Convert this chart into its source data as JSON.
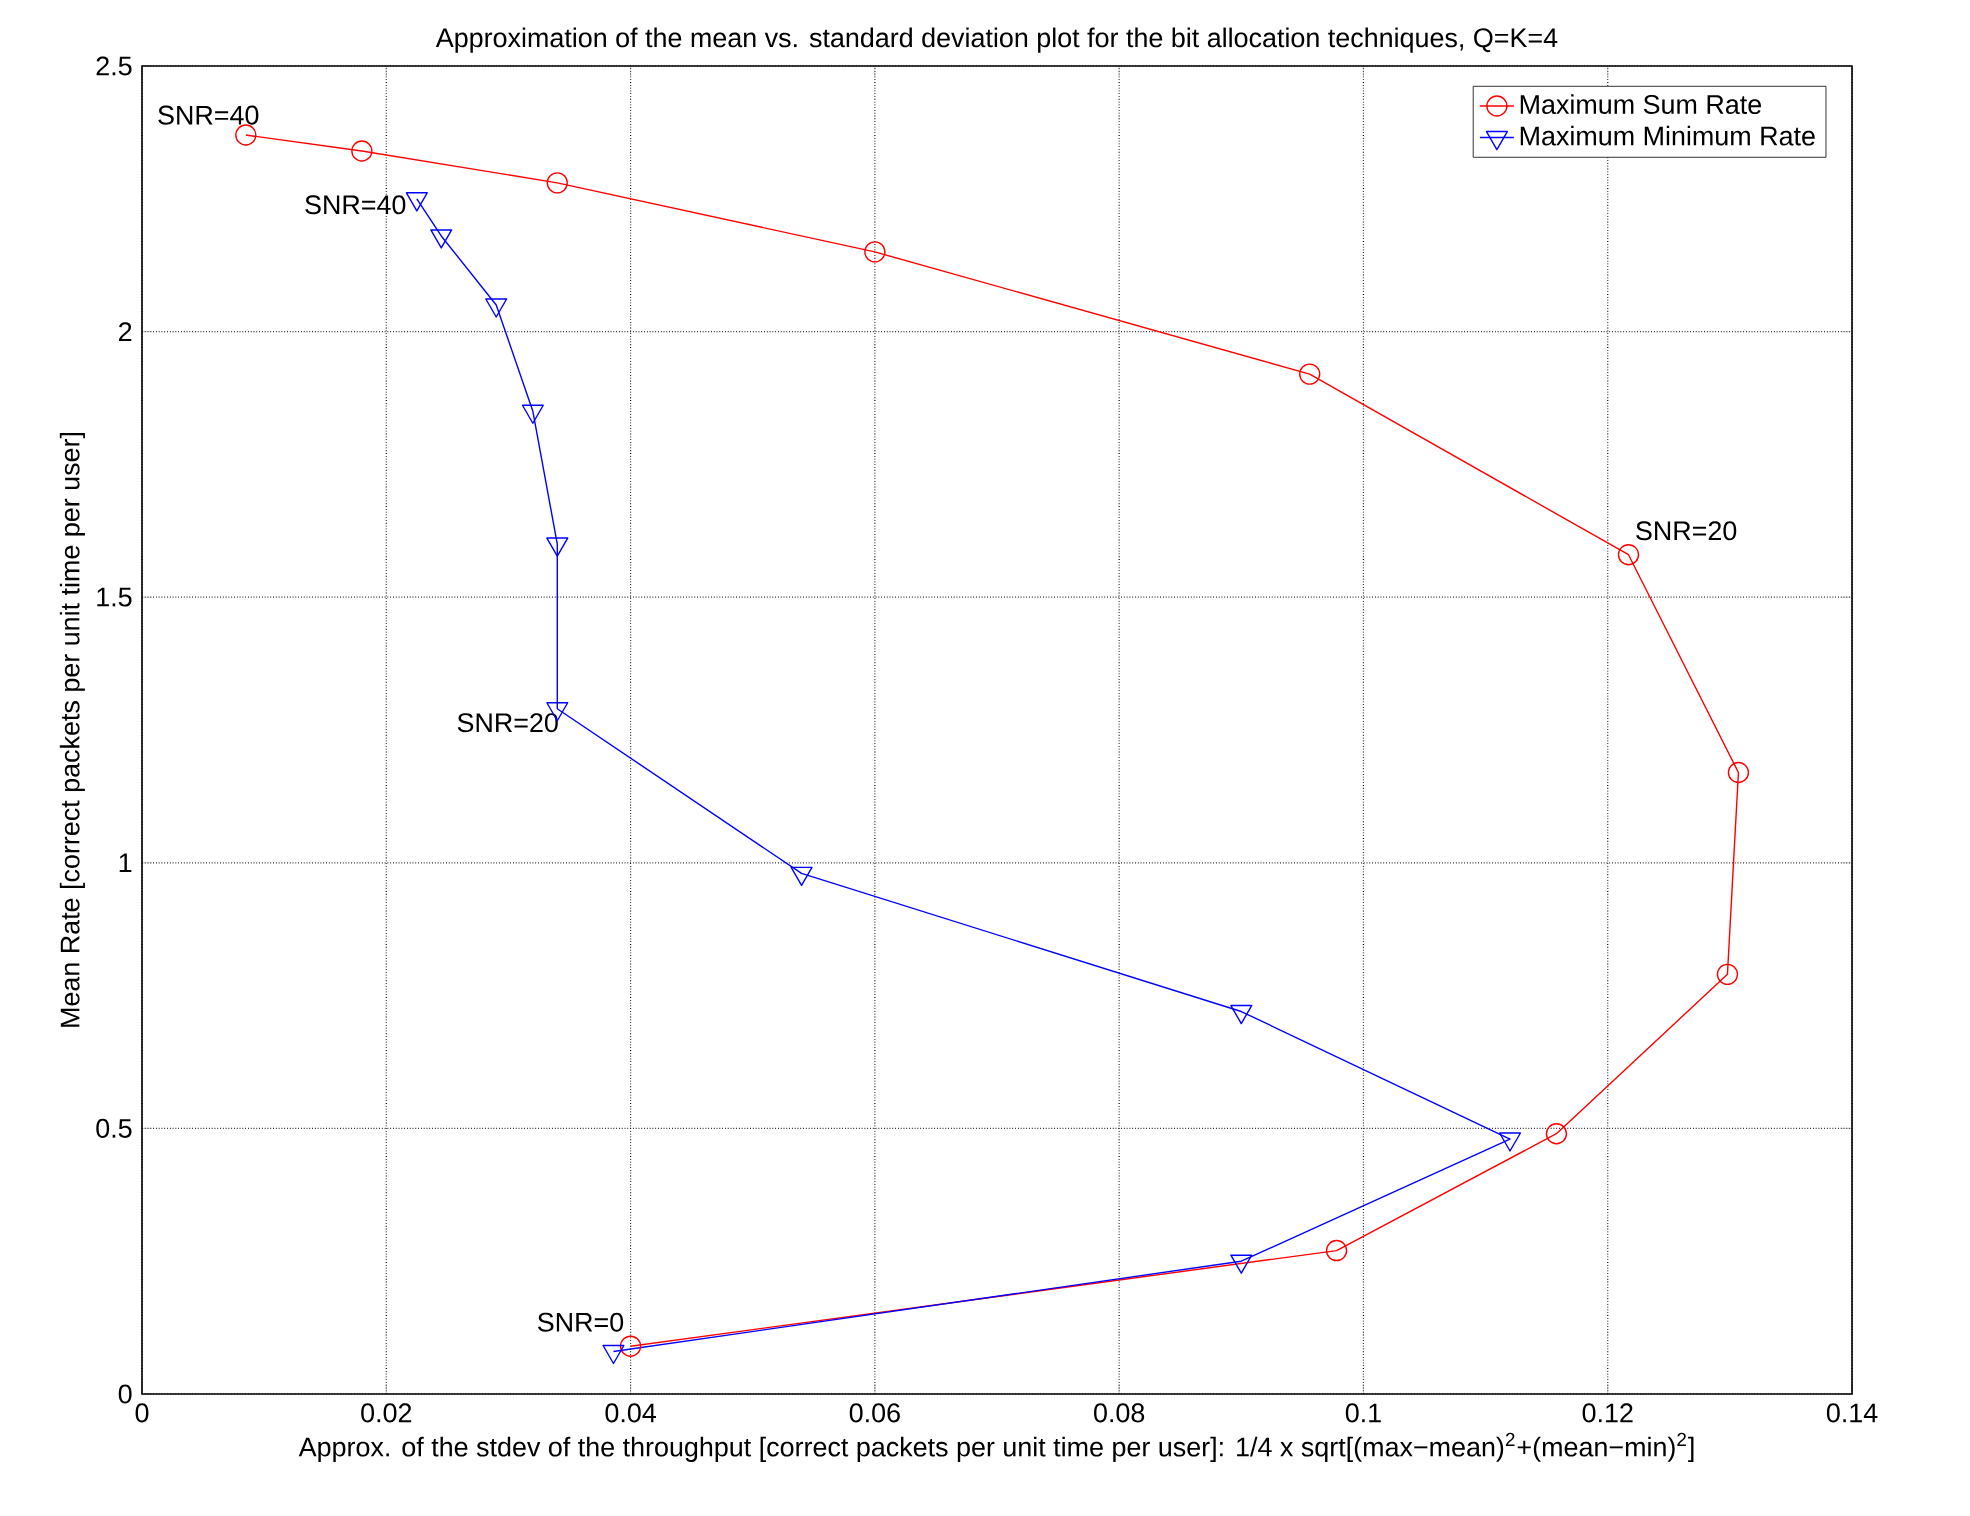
{
  "chart_data": {
    "type": "line",
    "title": "Approximation of the mean vs. standard deviation plot for the bit allocation techniques, Q=K=4",
    "xlabel": "Approx. of the stdev of the throughput [correct packets per unit time per user]: 1/4 x sqrt[(max−mean)$^{2}$+(mean−min)$^{2}$]",
    "ylabel": "Mean Rate [correct packets per unit time per user]",
    "series": [
      {
        "name": "Maximum Sum Rate",
        "color": "#ff0000",
        "marker": "circle",
        "x": [
          0.0085,
          0.018,
          0.034,
          0.06,
          0.0956,
          0.1217,
          0.1307,
          0.1298,
          0.1158,
          0.0978,
          0.04
        ],
        "values": [
          2.37,
          2.34,
          2.28,
          2.15,
          1.92,
          1.58,
          1.17,
          0.79,
          0.49,
          0.27,
          0.09
        ]
      },
      {
        "name": "Maximum Minimum Rate",
        "color": "#0000ff",
        "marker": "triangle",
        "x": [
          0.0225,
          0.0245,
          0.029,
          0.032,
          0.034,
          0.034,
          0.054,
          0.09,
          0.112,
          0.09,
          0.0386
        ],
        "values": [
          2.25,
          2.18,
          2.05,
          1.85,
          1.6,
          1.29,
          0.98,
          0.72,
          0.48,
          0.25,
          0.08
        ]
      }
    ],
    "xlim": [
      0,
      0.14
    ],
    "ylim": [
      0,
      2.5
    ],
    "xticks": [
      0,
      0.02,
      0.04,
      0.06,
      0.08,
      0.1,
      0.12,
      0.14
    ],
    "yticks": [
      0,
      0.5,
      1,
      1.5,
      2,
      2.5
    ],
    "grid": true,
    "legend": "top right",
    "line_style": "solid",
    "annotations": [
      {
        "text": "SNR=40",
        "x": 0.0085,
        "y": 2.37
      },
      {
        "text": "SNR=40",
        "x": 0.0225,
        "y": 2.25
      },
      {
        "text": "SNR=20",
        "x": 0.1217,
        "y": 1.58
      },
      {
        "text": "SNR=20",
        "x": 0.034,
        "y": 1.29
      },
      {
        "text": "SNR=0",
        "x": 0.04,
        "y": 0.09
      }
    ]
  }
}
